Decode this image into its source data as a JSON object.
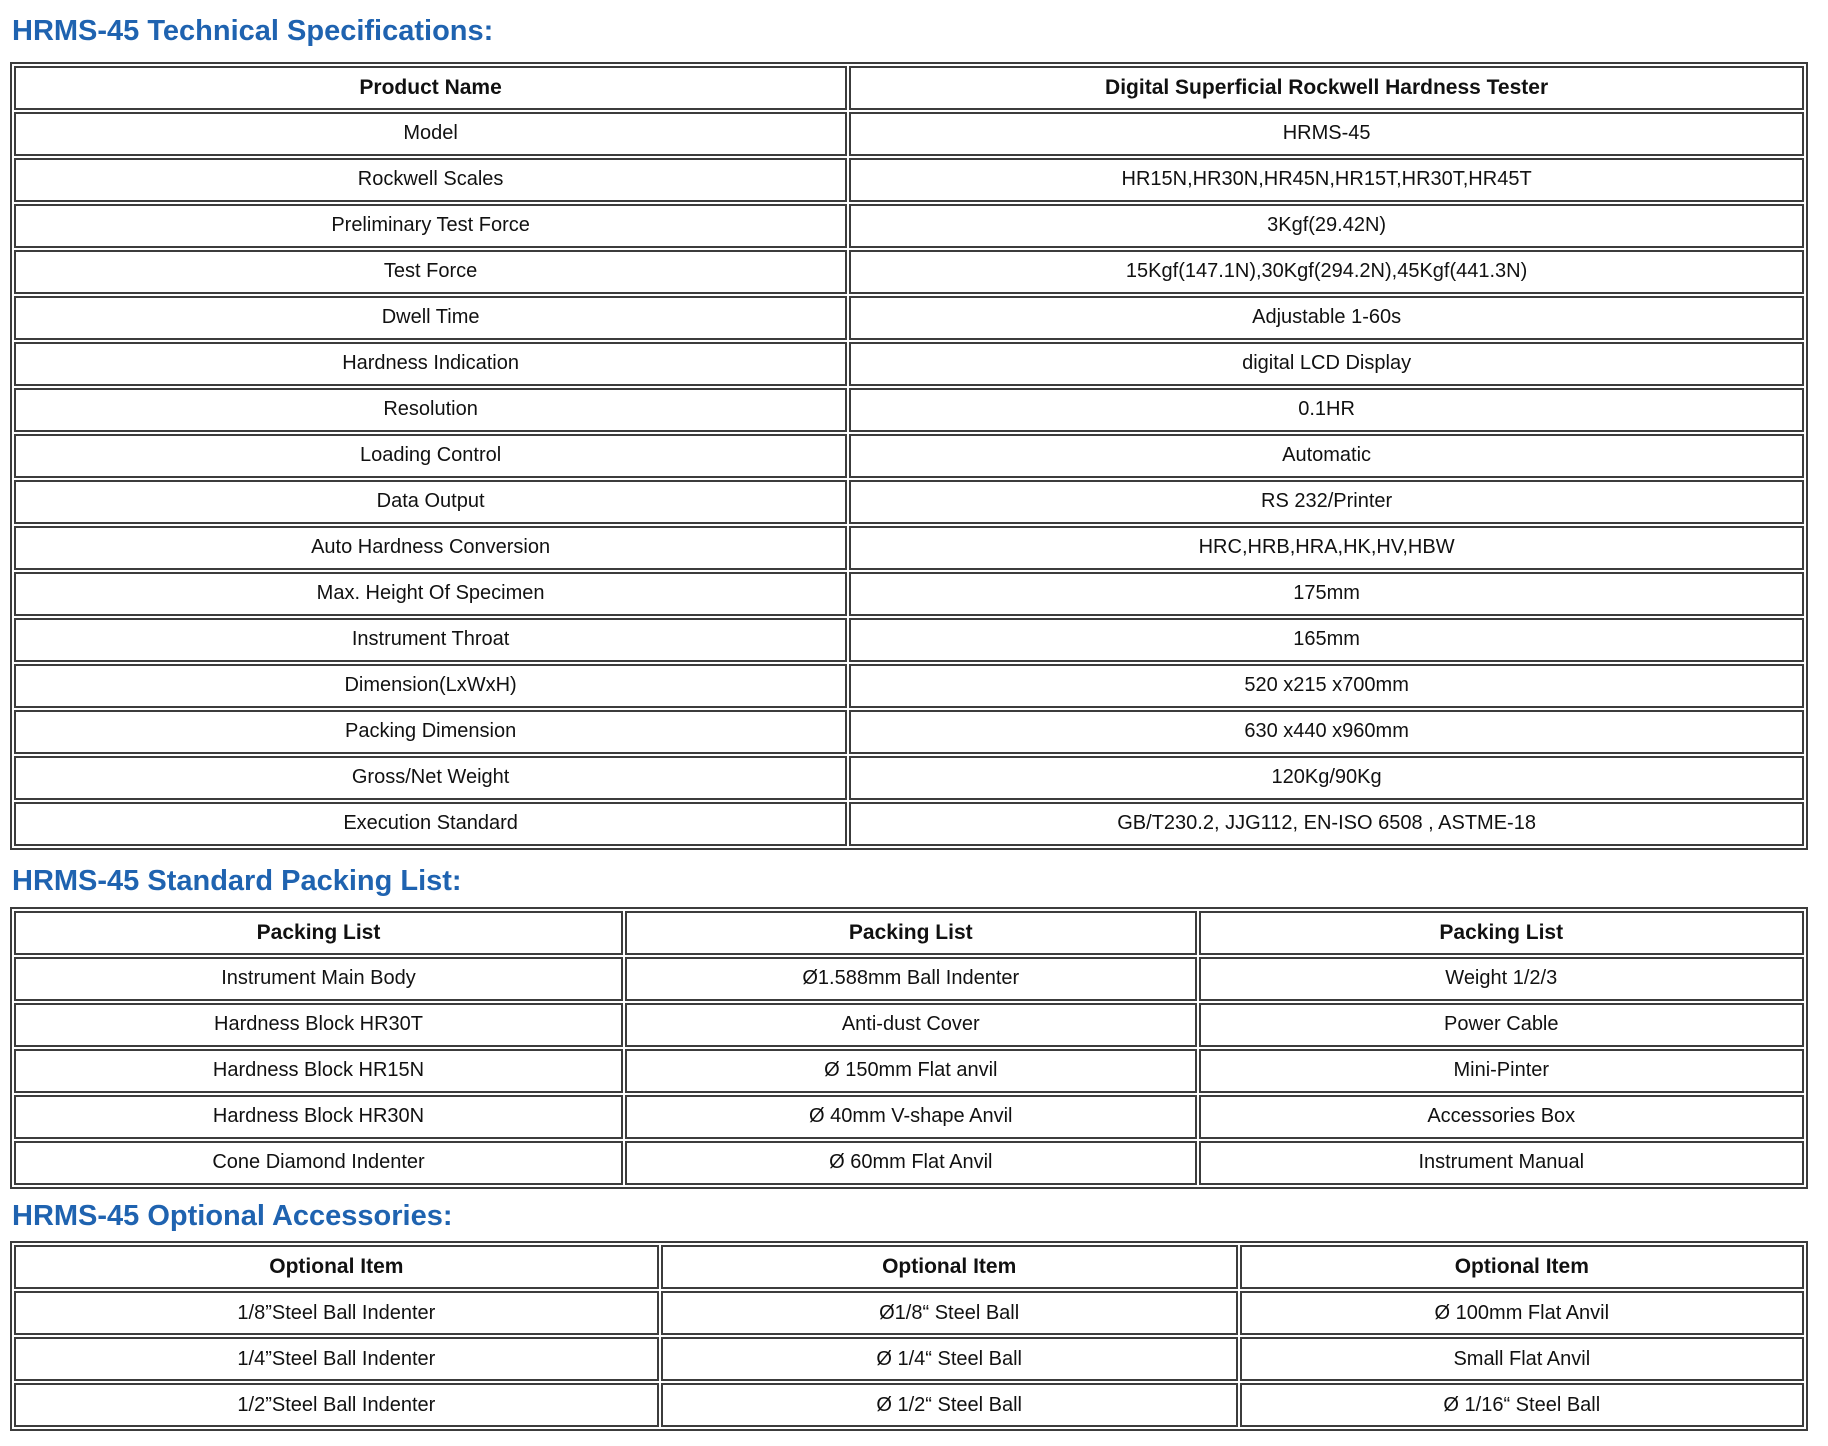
{
  "page": {
    "accent_color": "#1f63b0",
    "border_color": "#3c3c3c"
  },
  "sections": [
    {
      "heading": "HRMS-45 Technical Specifications:",
      "table": {
        "header_row": [
          "Product Name",
          "Digital Superficial Rockwell Hardness Tester"
        ],
        "rows": [
          [
            "Model",
            "HRMS-45"
          ],
          [
            "Rockwell Scales",
            "HR15N,HR30N,HR45N,HR15T,HR30T,HR45T"
          ],
          [
            "Preliminary Test Force",
            "3Kgf(29.42N)"
          ],
          [
            "Test Force",
            "15Kgf(147.1N),30Kgf(294.2N),45Kgf(441.3N)"
          ],
          [
            "Dwell Time",
            "Adjustable 1-60s"
          ],
          [
            "Hardness Indication",
            "digital LCD Display"
          ],
          [
            "Resolution",
            "0.1HR"
          ],
          [
            "Loading Control",
            "Automatic"
          ],
          [
            "Data Output",
            "RS 232/Printer"
          ],
          [
            "Auto Hardness Conversion",
            "HRC,HRB,HRA,HK,HV,HBW"
          ],
          [
            "Max. Height Of Specimen",
            "175mm"
          ],
          [
            "Instrument Throat",
            "165mm"
          ],
          [
            "Dimension(LxWxH)",
            "520 x215 x700mm"
          ],
          [
            "Packing Dimension",
            "630 x440 x960mm"
          ],
          [
            "Gross/Net Weight",
            "120Kg/90Kg"
          ],
          [
            "Execution Standard",
            "GB/T230.2, JJG112, EN-ISO 6508 , ASTME-18"
          ]
        ]
      }
    },
    {
      "heading": "HRMS-45 Standard Packing List:",
      "table": {
        "header_row": [
          "Packing List",
          "Packing List",
          "Packing List"
        ],
        "rows": [
          [
            "Instrument Main Body",
            "Ø1.588mm Ball Indenter",
            "Weight 1/2/3"
          ],
          [
            "Hardness Block HR30T",
            "Anti-dust Cover",
            "Power Cable"
          ],
          [
            "Hardness Block HR15N",
            "Ø 150mm Flat anvil",
            "Mini-Pinter"
          ],
          [
            "Hardness Block HR30N",
            "Ø 40mm V-shape Anvil",
            "Accessories Box"
          ],
          [
            "Cone Diamond Indenter",
            "Ø 60mm Flat Anvil",
            "Instrument Manual"
          ]
        ]
      }
    },
    {
      "heading": "HRMS-45 Optional Accessories:",
      "table": {
        "header_row": [
          "Optional Item",
          "Optional Item",
          "Optional Item"
        ],
        "rows": [
          [
            "1/8”Steel Ball Indenter",
            "Ø1/8“ Steel Ball",
            "Ø 100mm Flat Anvil"
          ],
          [
            "1/4”Steel Ball Indenter",
            "Ø 1/4“ Steel Ball",
            "Small Flat Anvil"
          ],
          [
            "1/2”Steel Ball Indenter",
            "Ø 1/2“ Steel Ball",
            "Ø 1/16“ Steel Ball"
          ]
        ]
      }
    }
  ]
}
